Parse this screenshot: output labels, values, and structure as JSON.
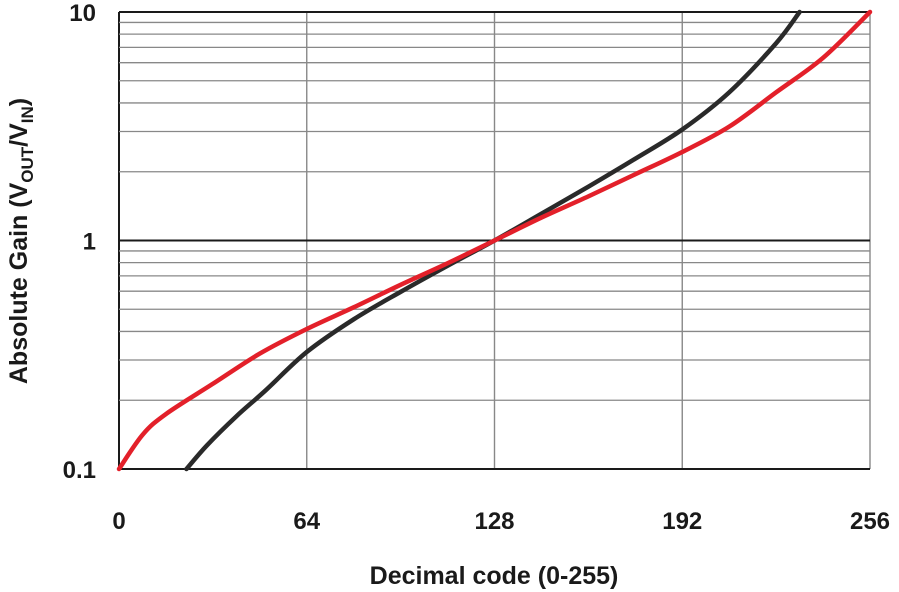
{
  "chart_data": {
    "type": "line",
    "title": "",
    "xlabel": "Decimal code (0-255)",
    "ylabel": {
      "prefix": "Absolute Gain (V",
      "sub1": "OUT",
      "mid": "/V",
      "sub2": "IN",
      "suffix": ")"
    },
    "xlim": [
      0,
      256
    ],
    "ylim": [
      0.1,
      10
    ],
    "yscale": "log",
    "grid": true,
    "x_ticks": [
      "0",
      "64",
      "128",
      "192",
      "256"
    ],
    "x_tick_values": [
      0,
      64,
      128,
      192,
      256
    ],
    "y_ticks": [
      "0.1",
      "1",
      "10"
    ],
    "y_tick_values": [
      0.1,
      1,
      10
    ],
    "series": [
      {
        "color": "#2a2a2a",
        "x": [
          23,
          30,
          40,
          50,
          64,
          80,
          96,
          112,
          128,
          144,
          160,
          176,
          192,
          208,
          224,
          232
        ],
        "y": [
          0.1,
          0.127,
          0.17,
          0.221,
          0.325,
          0.452,
          0.596,
          0.775,
          1.0,
          1.31,
          1.72,
          2.28,
          3.06,
          4.45,
          7.3,
          10.0
        ]
      },
      {
        "color": "#e3202a",
        "x": [
          0,
          8,
          16,
          32,
          48,
          64,
          80,
          96,
          112,
          128,
          144,
          160,
          176,
          192,
          208,
          224,
          240,
          256
        ],
        "y": [
          0.1,
          0.141,
          0.174,
          0.236,
          0.32,
          0.41,
          0.51,
          0.64,
          0.795,
          1.0,
          1.26,
          1.56,
          1.95,
          2.44,
          3.15,
          4.45,
          6.3,
          10.0
        ]
      }
    ]
  }
}
